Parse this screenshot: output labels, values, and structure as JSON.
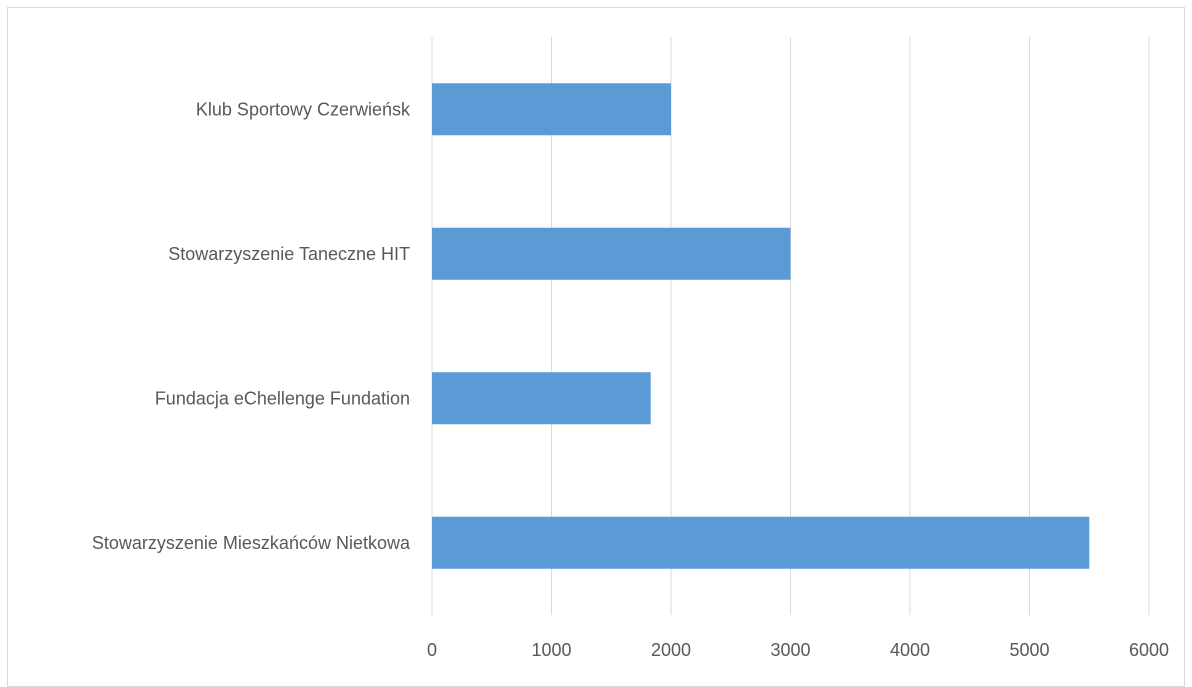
{
  "chart_data": {
    "type": "bar",
    "orientation": "horizontal",
    "title": "",
    "xlabel": "",
    "ylabel": "",
    "categories": [
      "Klub Sportowy Czerwieńsk",
      "Stowarzyszenie Taneczne HIT",
      "Fundacja eChellenge Fundation",
      "Stowarzyszenie Mieszkańców Nietkowa"
    ],
    "values": [
      2000,
      3000,
      1830,
      5500
    ],
    "xlim": [
      0,
      6000
    ],
    "xticks": [
      "0",
      "1000",
      "2000",
      "3000",
      "4000",
      "5000",
      "6000"
    ],
    "grid": "vertical",
    "legend": "none",
    "colors": {
      "bar": "#5b9bd5",
      "grid": "#d9d9d9",
      "text": "#595959"
    }
  }
}
